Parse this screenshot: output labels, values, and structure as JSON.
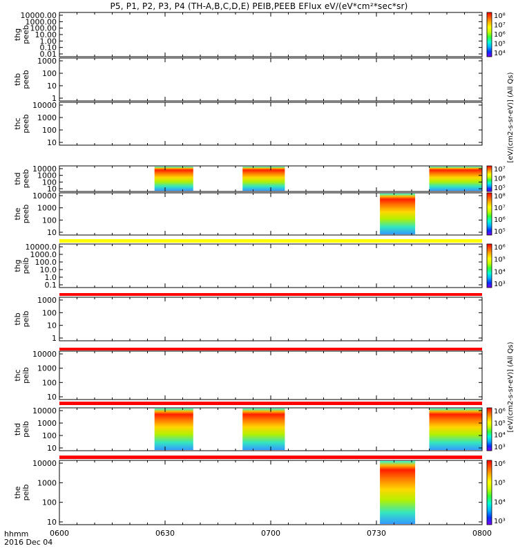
{
  "title": "P5, P1, P2, P3, P4 (TH-A,B,C,D,E) PEIB,PEEB EFlux eV/(eV*cm²*sec*sr)",
  "footer": {
    "line1": "hhmm",
    "line2": "2016 Dec 04"
  },
  "colorbar_units": {
    "peeb": "[eV/(cm2-s-sr-eV)] (All Qs)",
    "peib": "[eV/(cm2-s-sr-eV)] (All Qs)"
  },
  "colors": {
    "spectrogram_scale": [
      "#7f00ff",
      "#0033ff",
      "#00b4ff",
      "#00ffd5",
      "#33ff33",
      "#c8ff00",
      "#ffff00",
      "#ffb400",
      "#ff5a00",
      "#ff0000"
    ],
    "flag_red": "#ff0000",
    "flag_yellow": "#ffff00"
  },
  "chart_data": {
    "type": "heatmap",
    "x_axis": {
      "ticks": [
        "0600",
        "0630",
        "0700",
        "0730",
        "0800"
      ],
      "range": [
        "0600",
        "0800"
      ]
    },
    "panels": [
      {
        "probe": "thg",
        "product": "peeb",
        "y_ticks": [
          "10000.00",
          "1000.00",
          "100.00",
          "10.00",
          "1.00",
          "0.10",
          "0.01"
        ],
        "colorbar_ticks": [
          "10⁸",
          "10⁷",
          "10⁶",
          "10⁵",
          "10⁴"
        ],
        "data_intervals": [],
        "flag_bar": null
      },
      {
        "probe": "thb",
        "product": "peeb",
        "y_ticks": [
          "1000",
          "100",
          "10",
          "1"
        ],
        "colorbar_ticks": [],
        "data_intervals": [],
        "flag_bar": null
      },
      {
        "probe": "thc",
        "product": "peeb",
        "y_ticks": [
          "10000",
          "1000",
          "100",
          "10"
        ],
        "colorbar_ticks": [],
        "data_intervals": [],
        "flag_bar": null
      },
      {
        "probe": "thd",
        "product": "peeb",
        "y_ticks": [
          "10000",
          "1000",
          "100",
          "10"
        ],
        "colorbar_ticks": [
          "10⁷",
          "10⁶",
          "10⁵"
        ],
        "data_intervals": [
          [
            "0627",
            "0638"
          ],
          [
            "0652",
            "0704"
          ],
          [
            "0745",
            "0800"
          ]
        ],
        "flag_bar": null
      },
      {
        "probe": "the",
        "product": "peeb",
        "y_ticks": [
          "10000",
          "1000",
          "100",
          "10"
        ],
        "colorbar_ticks": [
          "10⁸",
          "10⁷",
          "10⁶",
          "10⁵"
        ],
        "data_intervals": [
          [
            "0731",
            "0741"
          ]
        ],
        "flag_bar": "yellow"
      },
      {
        "probe": "thg",
        "product": "peib",
        "y_ticks": [
          "10000.0",
          "1000.0",
          "100.0",
          "10.0",
          "1.0",
          "0.1"
        ],
        "colorbar_ticks": [
          "10⁶",
          "10⁵",
          "10⁴",
          "10³"
        ],
        "data_intervals": [],
        "flag_bar": "red"
      },
      {
        "probe": "thb",
        "product": "peib",
        "y_ticks": [
          "1000",
          "100",
          "10",
          "1"
        ],
        "colorbar_ticks": [],
        "data_intervals": [],
        "flag_bar": "red"
      },
      {
        "probe": "thc",
        "product": "peib",
        "y_ticks": [
          "10000",
          "1000",
          "100",
          "10"
        ],
        "colorbar_ticks": [],
        "data_intervals": [],
        "flag_bar": "red"
      },
      {
        "probe": "thd",
        "product": "peib",
        "y_ticks": [
          "10000",
          "1000",
          "100",
          "10"
        ],
        "colorbar_ticks": [
          "10⁶",
          "10⁵",
          "10⁴",
          "10³"
        ],
        "data_intervals": [
          [
            "0627",
            "0638"
          ],
          [
            "0652",
            "0704"
          ],
          [
            "0745",
            "0800"
          ]
        ],
        "flag_bar": "red"
      },
      {
        "probe": "the",
        "product": "peib",
        "y_ticks": [
          "10000",
          "1000",
          "100",
          "10"
        ],
        "colorbar_ticks": [
          "10⁶",
          "10⁵",
          "10⁴",
          "10³"
        ],
        "data_intervals": [
          [
            "0731",
            "0741"
          ]
        ],
        "flag_bar": null
      }
    ]
  }
}
